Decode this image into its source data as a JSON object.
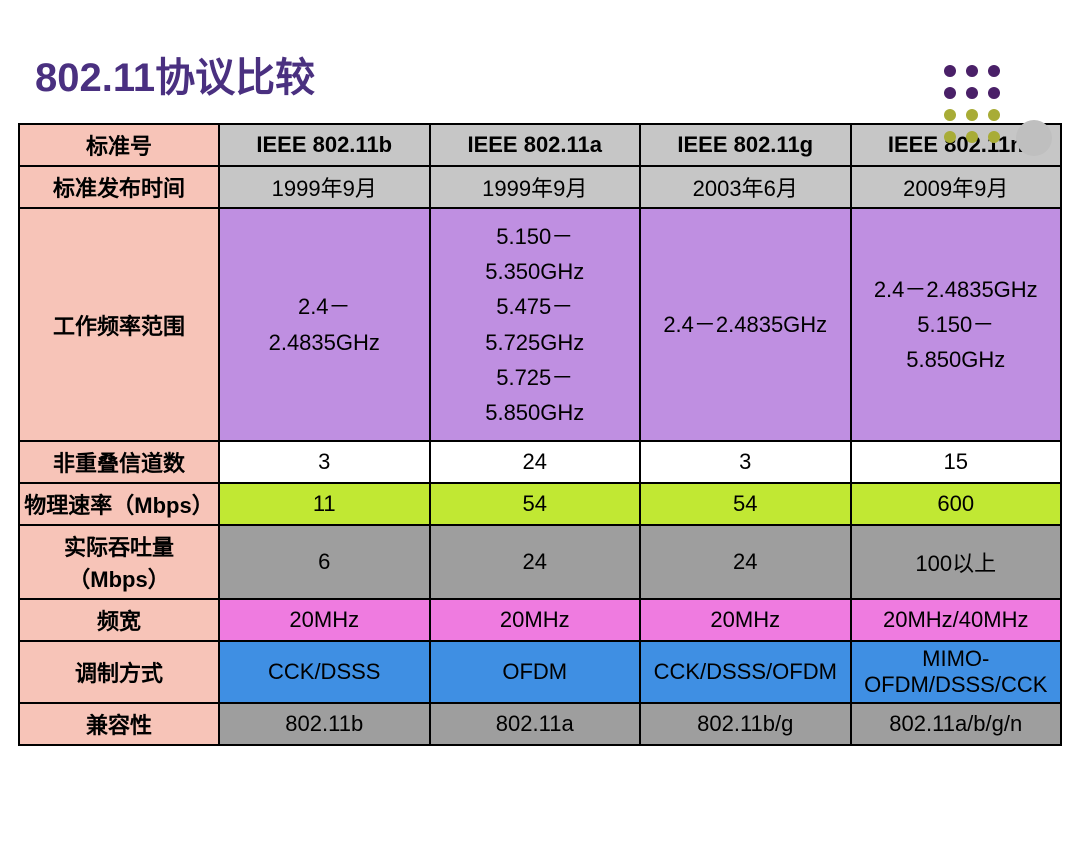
{
  "title": "802.11协议比较",
  "colors": {
    "title": "#4a3080",
    "pink": "#f7c4b8",
    "gray": "#c6c6c6",
    "purple": "#bf8fe1",
    "white": "#ffffff",
    "lime": "#c1e833",
    "darkgray": "#9e9e9e",
    "magenta": "#ef7be0",
    "blue": "#3f8fe3",
    "dot_purple": "#4a2068",
    "dot_gold": "#a8ac36",
    "dot_gray": "#bfbfbf"
  },
  "table": {
    "label_col_header": "标准号",
    "columns": [
      "IEEE 802.11b",
      "IEEE 802.11a",
      "IEEE 802.11g",
      "IEEE 802.11n"
    ],
    "rows": [
      {
        "label": "标准发布时间",
        "bg": "gray",
        "cells": [
          "1999年9月",
          "1999年9月",
          "2003年6月",
          "2009年9月"
        ]
      },
      {
        "label": "工作频率范围",
        "bg": "purple",
        "freq": true,
        "cells": [
          "2.4－\n2.4835GHz",
          "5.150－\n5.350GHz\n5.475－\n5.725GHz\n5.725－\n5.850GHz",
          "2.4－2.4835GHz",
          "2.4－2.4835GHz\n5.150－\n5.850GHz"
        ]
      },
      {
        "label": "非重叠信道数",
        "bg": "white",
        "cells": [
          "3",
          "24",
          "3",
          "15"
        ]
      },
      {
        "label": "物理速率（Mbps）",
        "bg": "lime",
        "cells": [
          "11",
          "54",
          "54",
          "600"
        ]
      },
      {
        "label": "实际吞吐量（Mbps）",
        "bg": "darkgray",
        "cells": [
          "6",
          "24",
          "24",
          "100以上"
        ]
      },
      {
        "label": "频宽",
        "bg": "magenta",
        "cells": [
          "20MHz",
          "20MHz",
          "20MHz",
          "20MHz/40MHz"
        ]
      },
      {
        "label": "调制方式",
        "bg": "blue",
        "cells": [
          "CCK/DSSS",
          "OFDM",
          "CCK/DSSS/OFDM",
          "MIMO-OFDM/DSSS/CCK"
        ]
      },
      {
        "label": "兼容性",
        "bg": "darkgray",
        "cells": [
          "802.11b",
          "802.11a",
          "802.11b/g",
          "802.11a/b/g/n"
        ]
      }
    ]
  },
  "decoration": {
    "small_dot_size": 12,
    "big_dot_size": 36,
    "grid_gap": 22,
    "grid": [
      [
        "dot_purple",
        "dot_purple",
        "dot_purple"
      ],
      [
        "dot_purple",
        "dot_purple",
        "dot_purple"
      ],
      [
        "dot_gold",
        "dot_gold",
        "dot_gold"
      ],
      [
        "dot_gold",
        "dot_gold",
        "dot_gold"
      ]
    ]
  }
}
